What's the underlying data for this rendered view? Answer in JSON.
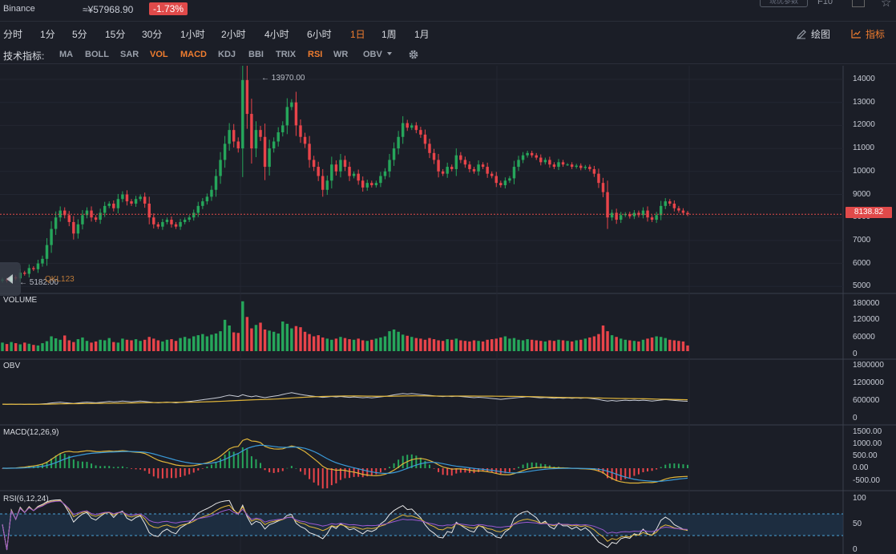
{
  "header": {
    "exchange": "Binance",
    "price": "≈¥57968.90",
    "change": "-1.73%",
    "clipped_button": "现优参数",
    "f10": "F10"
  },
  "periods": [
    {
      "label": "分时",
      "active": false
    },
    {
      "label": "1分",
      "active": false
    },
    {
      "label": "5分",
      "active": false
    },
    {
      "label": "15分",
      "active": false
    },
    {
      "label": "30分",
      "active": false
    },
    {
      "label": "1小时",
      "active": false
    },
    {
      "label": "2小时",
      "active": false
    },
    {
      "label": "4小时",
      "active": false
    },
    {
      "label": "6小时",
      "active": false
    },
    {
      "label": "1日",
      "active": true
    },
    {
      "label": "1周",
      "active": false
    },
    {
      "label": "1月",
      "active": false
    }
  ],
  "toolbar": {
    "draw_label": "绘图",
    "indicator_label": "指标"
  },
  "indicators": {
    "label": "技术指标:",
    "items": [
      {
        "label": "MA",
        "active": false
      },
      {
        "label": "BOLL",
        "active": false
      },
      {
        "label": "SAR",
        "active": false
      },
      {
        "label": "VOL",
        "active": true
      },
      {
        "label": "MACD",
        "active": true
      },
      {
        "label": "KDJ",
        "active": false
      },
      {
        "label": "BBI",
        "active": false
      },
      {
        "label": "TRIX",
        "active": false
      },
      {
        "label": "RSI",
        "active": true
      },
      {
        "label": "WR",
        "active": false
      },
      {
        "label": "OBV",
        "active": false,
        "dropdown": true
      }
    ]
  },
  "main_chart": {
    "y_ticks": [
      "14000",
      "13000",
      "12000",
      "11000",
      "10000",
      "9000",
      "8000",
      "7000",
      "6000",
      "5000"
    ],
    "current_price": "8138.82",
    "high_label": "← 13970.00",
    "low_label": "← 5182.00",
    "watermark": "QKL123"
  },
  "panels": {
    "volume": {
      "title": "VOLUME",
      "ticks": [
        "180000",
        "120000",
        "60000",
        "0"
      ]
    },
    "obv": {
      "title": "OBV",
      "ticks": [
        "1800000",
        "1200000",
        "600000",
        "0"
      ]
    },
    "macd": {
      "title": "MACD(12,26,9)",
      "ticks": [
        "1500.00",
        "1000.00",
        "500.00",
        "0.00",
        "-500.00"
      ]
    },
    "rsi": {
      "title": "RSI(6,12,24)",
      "ticks": [
        "100",
        "50",
        "0"
      ]
    }
  },
  "colors": {
    "up": "#26a65b",
    "down": "#e8444a",
    "accent": "#f07d2f",
    "bg": "#1b1e27",
    "grid": "#2a2e39"
  },
  "chart_data": {
    "type": "candlestick",
    "close": [
      5300,
      5250,
      5400,
      5350,
      5600,
      5550,
      5800,
      5750,
      6000,
      6200,
      6800,
      7500,
      8000,
      8300,
      8100,
      7800,
      7300,
      7700,
      8100,
      8300,
      8000,
      7900,
      8200,
      8500,
      8600,
      8400,
      8800,
      9000,
      8700,
      8600,
      8800,
      8900,
      8600,
      8000,
      7700,
      7600,
      7800,
      7900,
      7700,
      7600,
      7800,
      7900,
      8000,
      8200,
      8500,
      8700,
      8900,
      9200,
      9800,
      10500,
      11200,
      11800,
      11300,
      11000,
      13970,
      12500,
      11000,
      11800,
      11500,
      10200,
      11000,
      11300,
      11700,
      12000,
      12800,
      13000,
      12000,
      11500,
      11200,
      10500,
      10200,
      9800,
      9200,
      9600,
      10300,
      10000,
      10500,
      10200,
      9800,
      9900,
      9600,
      9300,
      9500,
      9400,
      9500,
      9800,
      10000,
      10500,
      11000,
      11500,
      12100,
      11900,
      12000,
      11800,
      11600,
      11200,
      10800,
      10500,
      10000,
      9900,
      10200,
      10100,
      10700,
      10500,
      10300,
      10100,
      10000,
      10300,
      10200,
      9900,
      9800,
      9500,
      9400,
      9600,
      9700,
      10200,
      10500,
      10700,
      10800,
      10700,
      10600,
      10400,
      10500,
      10300,
      10200,
      10400,
      10300,
      10300,
      10200,
      10250,
      10150,
      10200,
      10100,
      9900,
      9500,
      9100,
      8000,
      8200,
      7900,
      8100,
      8150,
      8050,
      8200,
      8100,
      8300,
      8000,
      7900,
      8100,
      8500,
      8700,
      8600,
      8400,
      8300,
      8200,
      8139
    ],
    "volume": [
      30000,
      25000,
      32000,
      28000,
      24000,
      30000,
      26000,
      22000,
      20000,
      28000,
      35000,
      52000,
      45000,
      40000,
      55000,
      38000,
      32000,
      42000,
      48000,
      36000,
      30000,
      34000,
      40000,
      38000,
      46000,
      32000,
      30000,
      44000,
      40000,
      38000,
      42000,
      36000,
      40000,
      50000,
      44000,
      38000,
      34000,
      40000,
      42000,
      36000,
      46000,
      50000,
      44000,
      52000,
      56000,
      60000,
      52000,
      58000,
      62000,
      70000,
      110000,
      90000,
      66000,
      64000,
      175000,
      120000,
      80000,
      92000,
      100000,
      76000,
      72000,
      68000,
      62000,
      104000,
      96000,
      80000,
      88000,
      84000,
      68000,
      60000,
      52000,
      56000,
      48000,
      44000,
      40000,
      44000,
      50000,
      46000,
      42000,
      40000,
      44000,
      38000,
      36000,
      40000,
      44000,
      48000,
      52000,
      70000,
      76000,
      68000,
      58000,
      54000,
      50000,
      46000,
      44000,
      40000,
      46000,
      42000,
      38000,
      36000,
      42000,
      40000,
      44000,
      38000,
      36000,
      34000,
      38000,
      36000,
      34000,
      40000,
      42000,
      44000,
      48000,
      52000,
      44000,
      46000,
      40000,
      38000,
      42000,
      40000,
      38000,
      36000,
      34000,
      38000,
      36000,
      40000,
      38000,
      36000,
      34000,
      38000,
      40000,
      44000,
      48000,
      52000,
      60000,
      90000,
      70000,
      56000,
      50000,
      44000,
      40000,
      38000,
      36000,
      34000,
      40000,
      44000,
      48000,
      52000,
      50000,
      46000,
      40000,
      38000,
      36000,
      34000,
      20000
    ]
  }
}
